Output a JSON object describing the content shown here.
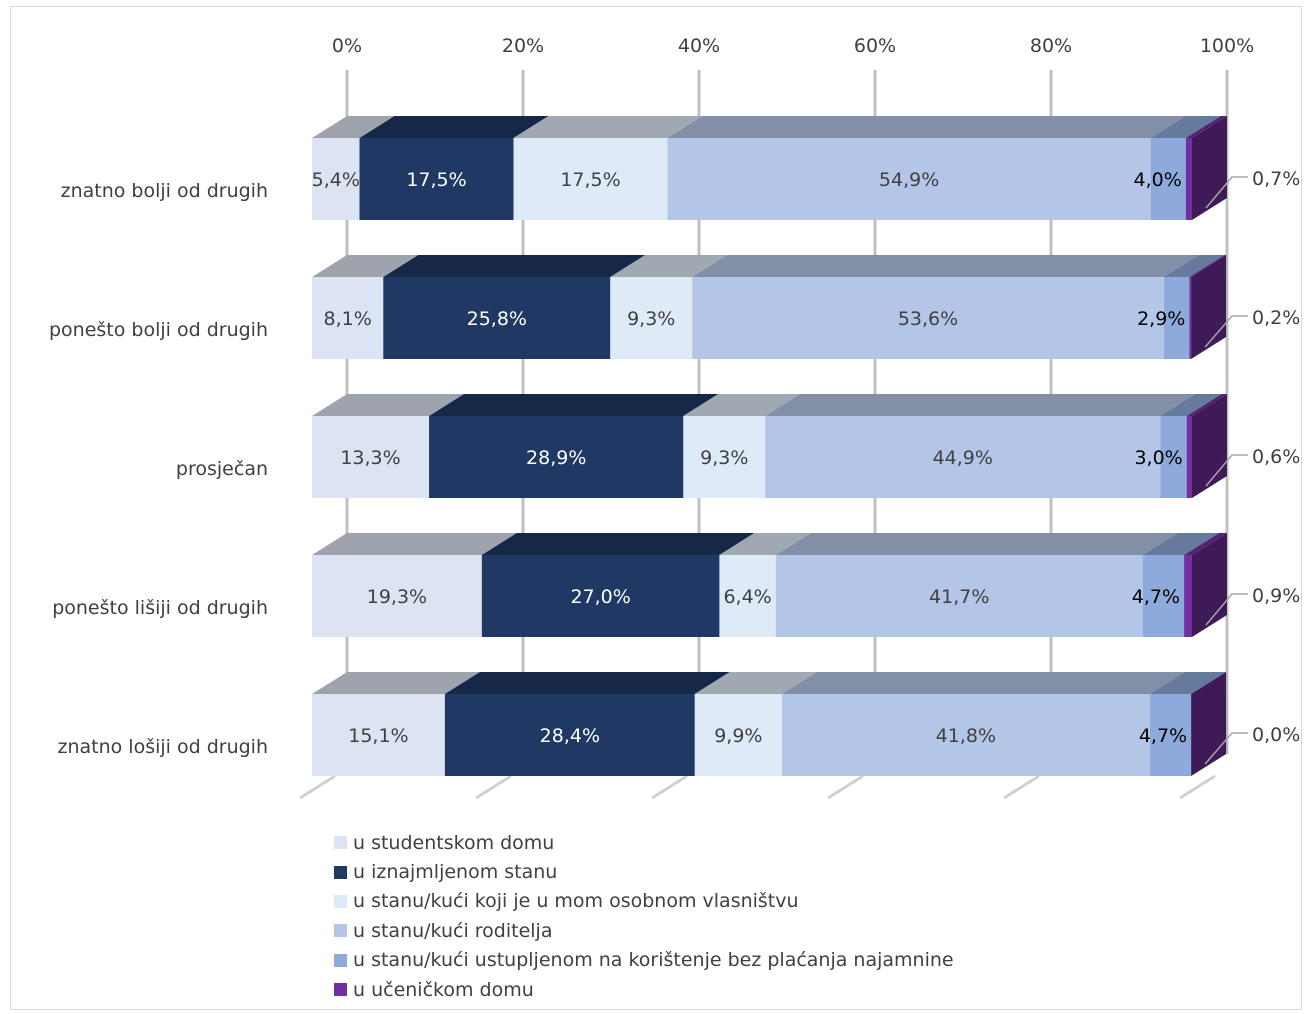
{
  "chart_data": {
    "type": "bar",
    "orientation": "horizontal",
    "stacked": "100%",
    "style": "3d",
    "categories": [
      "znatno bolji od drugih",
      "ponešto bolji od drugih",
      "prosječan",
      "ponešto lišiji od drugih",
      "znatno lošiji od drugih"
    ],
    "x_ticks": [
      "0%",
      "20%",
      "40%",
      "60%",
      "80%",
      "100%"
    ],
    "xlim": [
      0,
      100
    ],
    "grid": true,
    "legend_position": "bottom",
    "series": [
      {
        "name": "u studentskom domu",
        "color": "#dce3f2",
        "values": [
          5.4,
          8.1,
          13.3,
          19.3,
          15.1
        ],
        "labels": [
          "5,4%",
          "8,1%",
          "13,3%",
          "19,3%",
          "15,1%"
        ]
      },
      {
        "name": "u iznajmljenom stanu",
        "color": "#1f3864",
        "values": [
          17.5,
          25.8,
          28.9,
          27.0,
          28.4
        ],
        "labels": [
          "17,5%",
          "25,8%",
          "28,9%",
          "27,0%",
          "28,4%"
        ]
      },
      {
        "name": "u stanu/kući koji je u mom osobnom vlasništvu",
        "color": "#deeaf7",
        "values": [
          17.5,
          9.3,
          9.3,
          6.4,
          9.9
        ],
        "labels": [
          "17,5%",
          "9,3%",
          "9,3%",
          "6,4%",
          "9,9%"
        ]
      },
      {
        "name": "u stanu/kući roditelja",
        "color": "#b4c6e7",
        "values": [
          54.9,
          53.6,
          44.9,
          41.7,
          41.8
        ],
        "labels": [
          "54,9%",
          "53,6%",
          "44,9%",
          "41,7%",
          "41,8%"
        ]
      },
      {
        "name": "u stanu/kući ustupljenom na korištenje bez plaćanja najamnine",
        "color": "#8ea9db",
        "values": [
          4.0,
          2.9,
          3.0,
          4.7,
          4.7
        ],
        "labels": [
          "4,0%",
          "2,9%",
          "3,0%",
          "4,7%",
          "4,7%"
        ]
      },
      {
        "name": "u učeničkom domu",
        "color": "#7030a0",
        "values": [
          0.7,
          0.2,
          0.6,
          0.9,
          0.0
        ],
        "labels": [
          "0,7%",
          "0,2%",
          "0,6%",
          "0,9%",
          "0,0%"
        ]
      }
    ]
  }
}
